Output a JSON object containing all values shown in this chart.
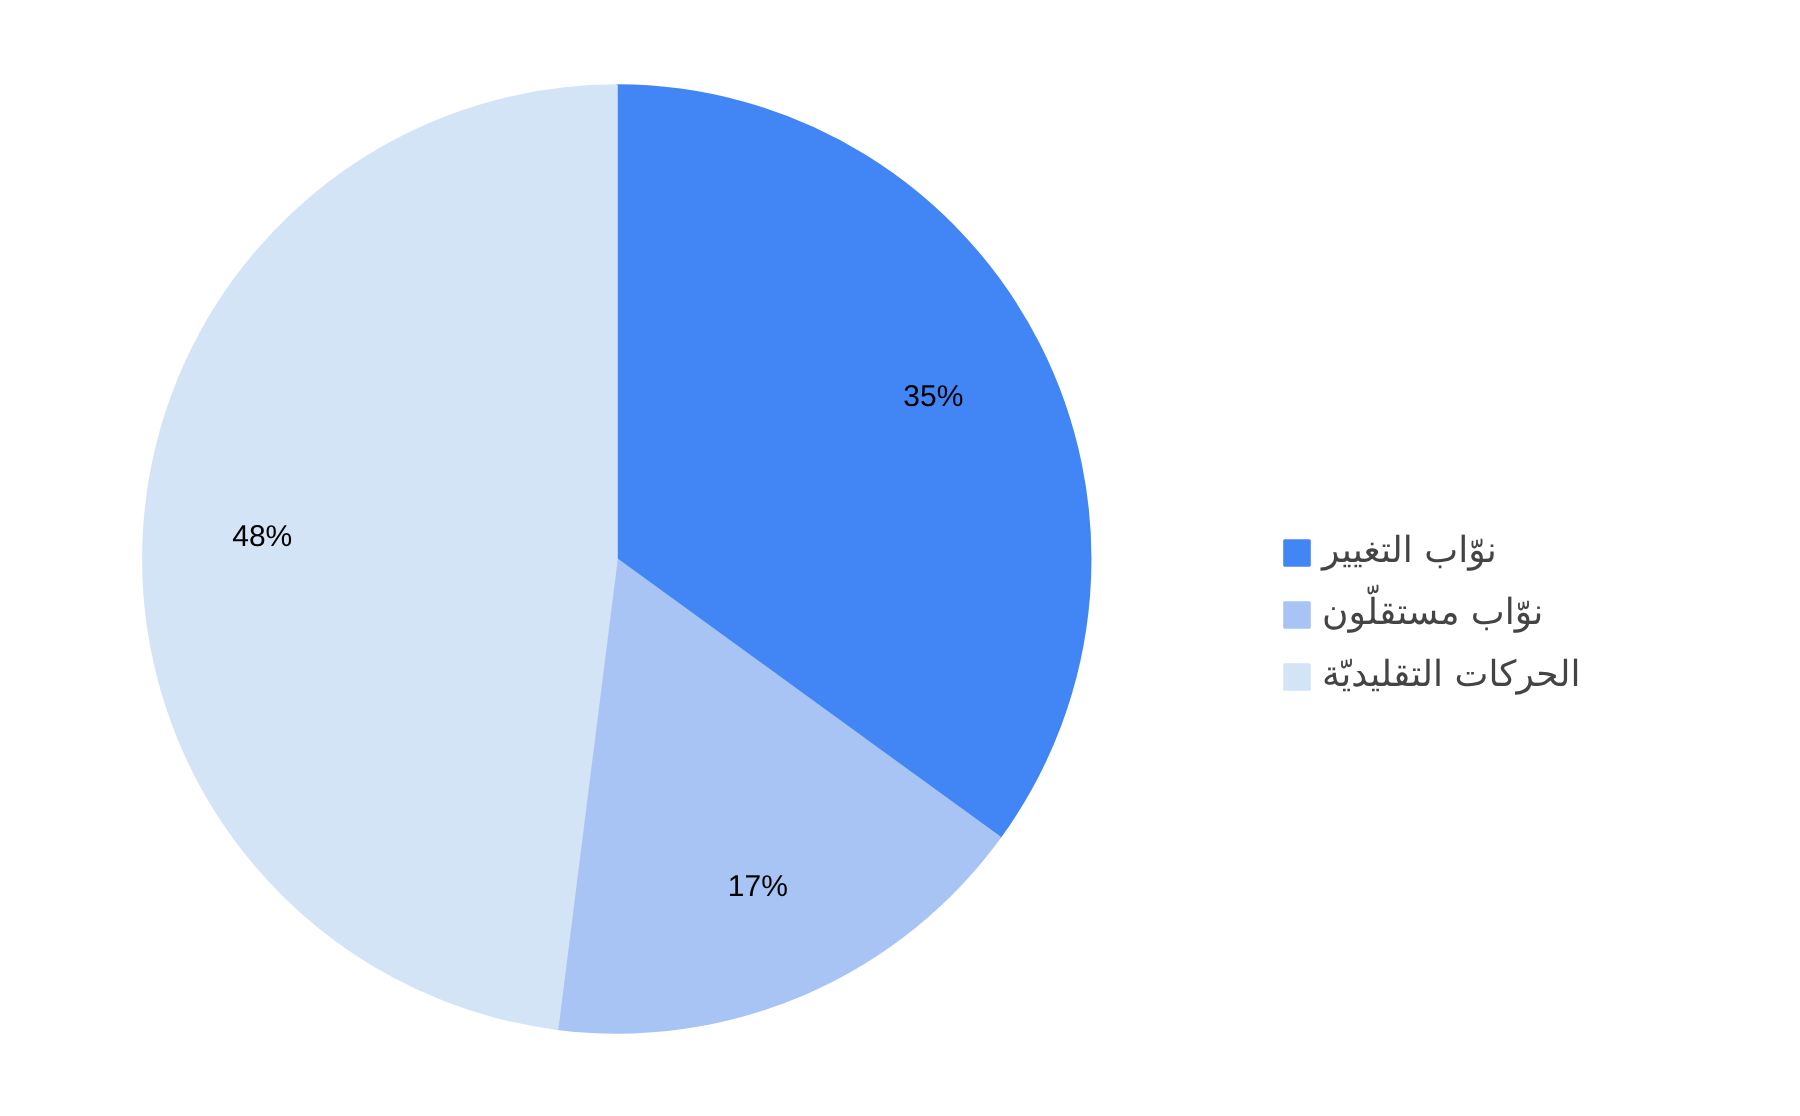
{
  "chart_data": {
    "type": "pie",
    "categories": [
      "نوّاب التغيير",
      "نوّاب مستقلّون",
      "الحركات التقليديّة"
    ],
    "values": [
      35,
      17,
      48
    ],
    "colors": [
      "#4285f4",
      "#a8c4f5",
      "#d4e4f7"
    ],
    "value_labels": [
      "35%",
      "17%",
      "48%"
    ],
    "legend": "right"
  }
}
